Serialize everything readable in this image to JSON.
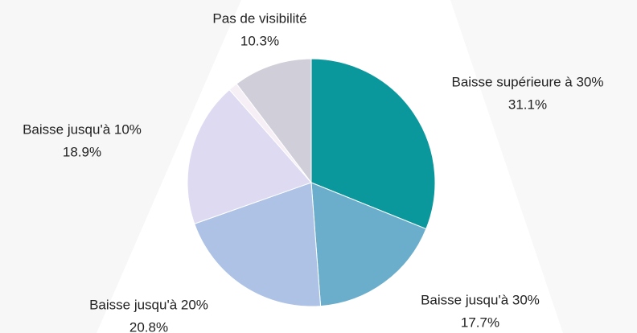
{
  "chart_data": {
    "type": "pie",
    "categories": [
      "Baisse supérieure à 30%",
      "Baisse jusqu'à 30%",
      "Baisse jusqu'à 20%",
      "Baisse jusqu'à 10%",
      null,
      "Pas de visibilité"
    ],
    "values": [
      31.1,
      17.7,
      20.8,
      18.9,
      1.2,
      10.3
    ],
    "value_labels": [
      "31.1%",
      "17.7%",
      "20.8%",
      "18.9%",
      null,
      "10.3%"
    ],
    "colors": [
      "#0a989d",
      "#6aaecb",
      "#adc2e4",
      "#dedaf2",
      "#f6eff6",
      "#d0ced8"
    ]
  }
}
